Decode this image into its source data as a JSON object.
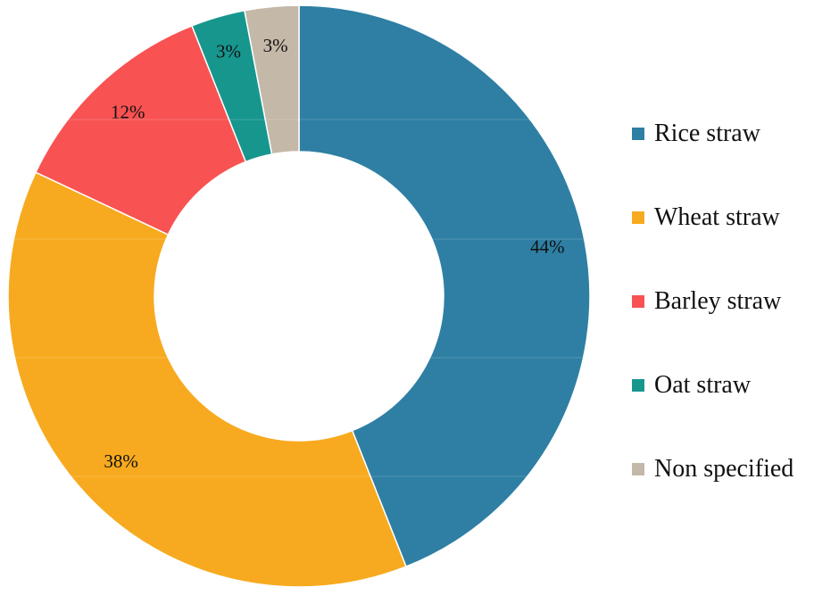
{
  "chart_data": {
    "type": "donut",
    "title": "",
    "categories": [
      "Rice straw",
      "Wheat straw",
      "Barley straw",
      "Oat straw",
      "Non specified"
    ],
    "values": [
      44,
      38,
      12,
      3,
      3
    ],
    "data_labels": [
      "44%",
      "38%",
      "12%",
      "3%",
      "3%"
    ],
    "colors": [
      "#2E7FA3",
      "#F7AA1F",
      "#F85252",
      "#17968E",
      "#C4B8A8"
    ],
    "unit": "%",
    "legend_position": "right"
  }
}
